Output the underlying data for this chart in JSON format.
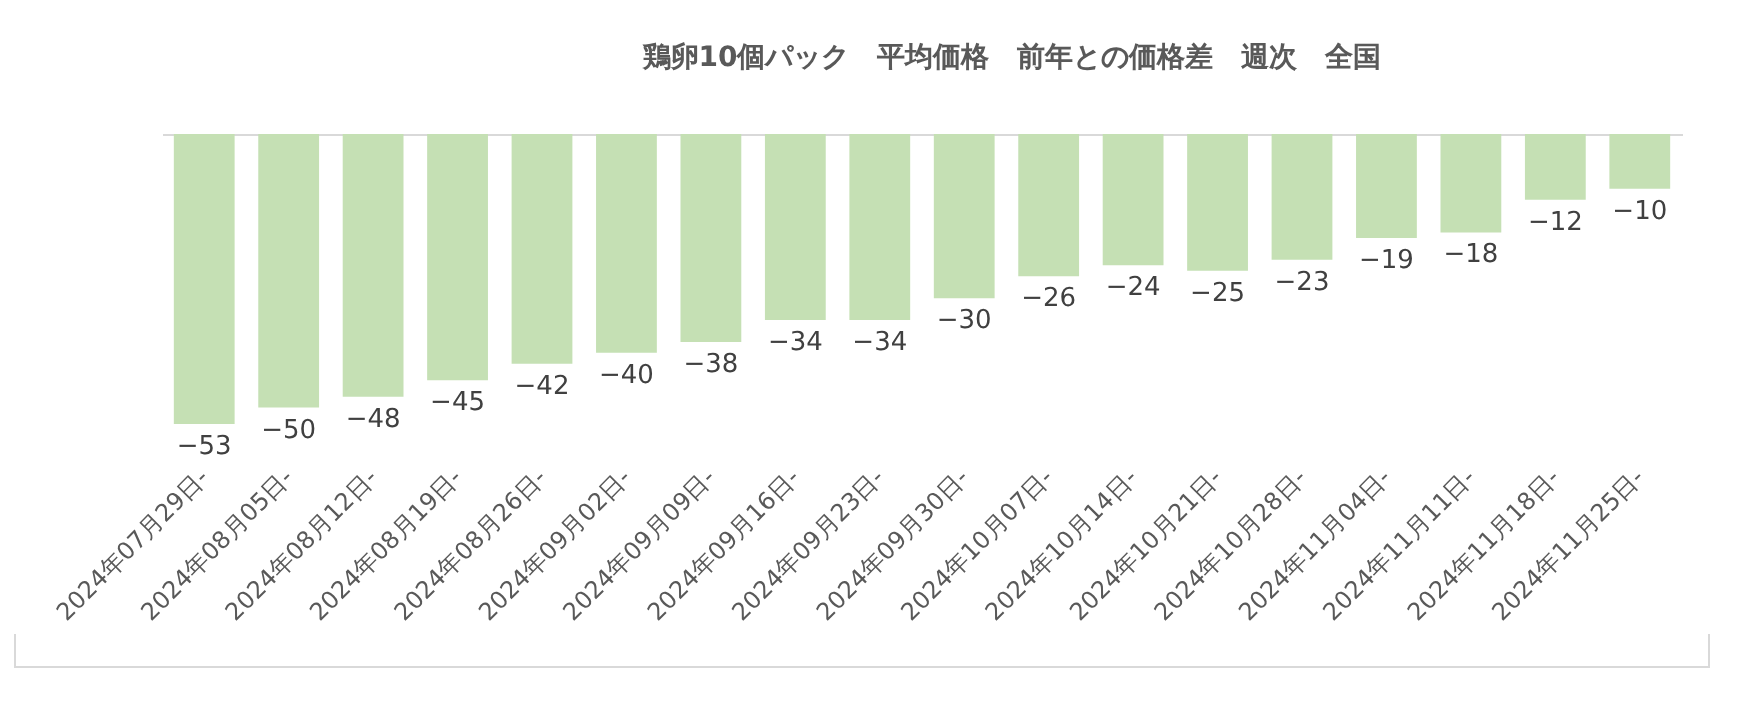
{
  "chart_data": {
    "type": "bar",
    "title": "鶏卵10個パック　平均価格　前年との価格差　週次　全国",
    "categories": [
      "2024年07月29日-",
      "2024年08月05日-",
      "2024年08月12日-",
      "2024年08月19日-",
      "2024年08月26日-",
      "2024年09月02日-",
      "2024年09月09日-",
      "2024年09月16日-",
      "2024年09月23日-",
      "2024年09月30日-",
      "2024年10月07日-",
      "2024年10月14日-",
      "2024年10月21日-",
      "2024年10月28日-",
      "2024年11月04日-",
      "2024年11月11日-",
      "2024年11月18日-",
      "2024年11月25日-"
    ],
    "values": [
      -53,
      -50,
      -48,
      -45,
      -42,
      -40,
      -38,
      -34,
      -34,
      -30,
      -26,
      -24,
      -25,
      -23,
      -19,
      -18,
      -12,
      -10
    ],
    "color": "#c5e0b4",
    "data_labels": true
  }
}
